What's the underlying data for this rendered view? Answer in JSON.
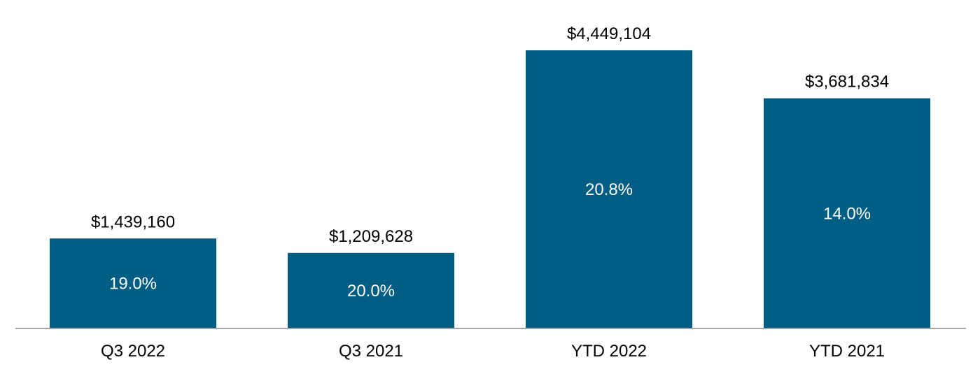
{
  "chart_data": {
    "type": "bar",
    "categories": [
      "Q3 2022",
      "Q3 2021",
      "YTD 2022",
      "YTD 2021"
    ],
    "values": [
      1439160,
      1209628,
      4449104,
      3681834
    ],
    "value_labels": [
      "$1,439,160",
      "$1,209,628",
      "$4,449,104",
      "$3,681,834"
    ],
    "percent_labels": [
      "19.0%",
      "20.0%",
      "20.8%",
      "14.0%"
    ],
    "ylim": [
      0,
      5000000
    ],
    "grid": false,
    "legend": "none",
    "colors": {
      "bar": "#005D84",
      "axis": "#A6A6A6"
    }
  }
}
